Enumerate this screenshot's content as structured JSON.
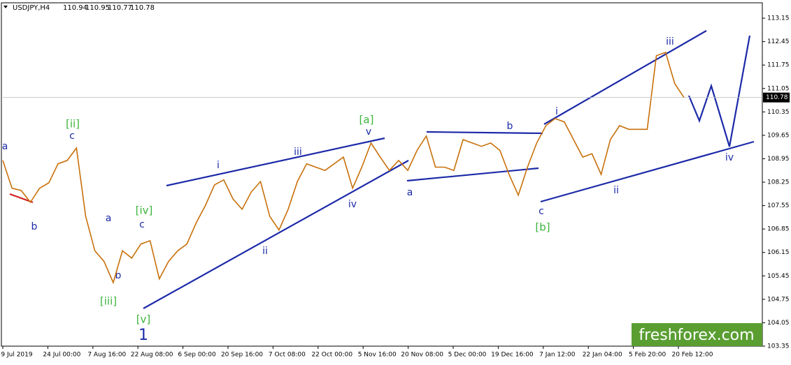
{
  "chart_data": {
    "type": "line",
    "header": {
      "symbol": "USDJPY,H4",
      "open": 110.94,
      "high": 110.95,
      "low": 110.77,
      "close": 110.78
    },
    "categories": [
      "9 Jul 2019",
      "24 Jul 00:00",
      "7 Aug 16:00",
      "22 Aug 08:00",
      "6 Sep 00:00",
      "20 Sep 16:00",
      "7 Oct 08:00",
      "22 Oct 00:00",
      "5 Nov 16:00",
      "20 Nov 08:00",
      "5 Dec 00:00",
      "19 Dec 16:00",
      "7 Jan 12:00",
      "22 Jan 04:00",
      "5 Feb 20:00",
      "20 Feb 12:00"
    ],
    "price": {
      "color": "#c8700a",
      "values": [
        108.9,
        108.07,
        108.0,
        107.65,
        108.07,
        108.23,
        108.8,
        108.9,
        109.27,
        107.23,
        106.2,
        105.88,
        105.25,
        106.2,
        105.98,
        106.4,
        106.5,
        105.36,
        105.88,
        106.2,
        106.4,
        107.03,
        107.55,
        108.17,
        108.32,
        107.75,
        107.44,
        107.96,
        108.27,
        107.23,
        106.82,
        107.44,
        108.27,
        108.8,
        108.7,
        108.6,
        108.8,
        109.0,
        108.07,
        108.7,
        109.42,
        109.0,
        108.6,
        108.9,
        108.6,
        109.2,
        109.63,
        108.7,
        108.7,
        108.6,
        109.52,
        109.42,
        109.32,
        109.42,
        109.2,
        108.48,
        107.86,
        108.7,
        109.42,
        109.94,
        110.15,
        110.05,
        109.52,
        109.0,
        109.1,
        108.48,
        109.52,
        109.94,
        109.83,
        109.83,
        109.83,
        112.03,
        112.13,
        111.19,
        110.78
      ]
    },
    "ylim": [
      103.35,
      113.61
    ],
    "yticks": [
      113.15,
      112.45,
      111.75,
      111.05,
      110.35,
      109.65,
      108.95,
      108.25,
      107.55,
      106.85,
      106.15,
      105.45,
      104.75,
      104.05,
      103.35
    ],
    "annotations": [
      "a",
      "b",
      "c",
      "[ii]",
      "a",
      "b",
      "c",
      "[iv]",
      "[iii]",
      "[v]",
      "1",
      "i",
      "ii",
      "iii",
      "iv",
      "v",
      "[a]",
      "a",
      "b",
      "c",
      "[b]",
      "i",
      "ii",
      "iii",
      "iv"
    ],
    "watermark": "freshforex.com"
  }
}
